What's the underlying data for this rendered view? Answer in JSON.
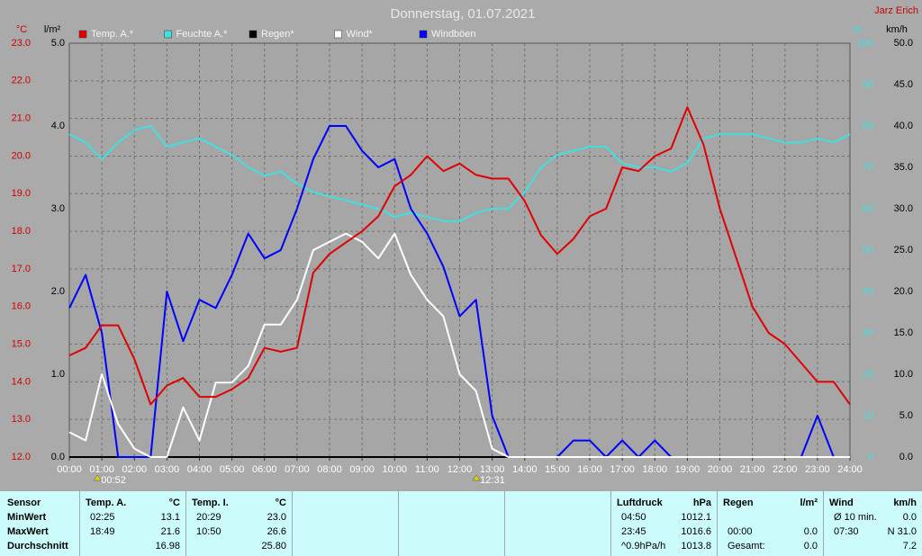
{
  "chart_data": {
    "type": "line",
    "title": "Donnerstag, 01.07.2021",
    "author": "Jarz Erich",
    "ylabel": "°C",
    "ylim": [
      12,
      23
    ],
    "yticks": [
      {
        "value": 12,
        "label": "12.0"
      },
      {
        "value": 13,
        "label": "13.0"
      },
      {
        "value": 14,
        "label": "14.0"
      },
      {
        "value": 15,
        "label": "15.0"
      },
      {
        "value": 16,
        "label": "16.0"
      },
      {
        "value": 17,
        "label": "17.0"
      },
      {
        "value": 18,
        "label": "18.0"
      },
      {
        "value": 19,
        "label": "19.0"
      },
      {
        "value": 20,
        "label": "20.0"
      },
      {
        "value": 21,
        "label": "21.0"
      },
      {
        "value": 22,
        "label": "22.0"
      },
      {
        "value": 23,
        "label": "23.0"
      }
    ],
    "y3label": "l/m²",
    "y3lim": [
      0,
      5
    ],
    "y3ticks": [
      {
        "value": 0,
        "label": "0.0"
      },
      {
        "value": 1,
        "label": "1.0"
      },
      {
        "value": 2,
        "label": "2.0"
      },
      {
        "value": 3,
        "label": "3.0"
      },
      {
        "value": 4,
        "label": "4.0"
      },
      {
        "value": 5,
        "label": "5.0"
      }
    ],
    "y2label": "%",
    "y2lim": [
      0,
      100
    ],
    "y2ticks": [
      0,
      10,
      20,
      30,
      40,
      50,
      60,
      70,
      80,
      90,
      100
    ],
    "y4label": "km/h",
    "y4lim": [
      0,
      50
    ],
    "y4ticks": [
      {
        "value": 0,
        "label": "0.0"
      },
      {
        "value": 5,
        "label": "5.0"
      },
      {
        "value": 10,
        "label": "10.0"
      },
      {
        "value": 15,
        "label": "15.0"
      },
      {
        "value": 20,
        "label": "20.0"
      },
      {
        "value": 25,
        "label": "25.0"
      },
      {
        "value": 30,
        "label": "30.0"
      },
      {
        "value": 35,
        "label": "35.0"
      },
      {
        "value": 40,
        "label": "40.0"
      },
      {
        "value": 45,
        "label": "45.0"
      },
      {
        "value": 50,
        "label": "50.0"
      }
    ],
    "xlim": [
      0,
      24
    ],
    "xticks": [
      {
        "value": 0,
        "label": "00:00"
      },
      {
        "value": 1,
        "label": "01:00"
      },
      {
        "value": 2,
        "label": "02:00"
      },
      {
        "value": 3,
        "label": "03:00"
      },
      {
        "value": 4,
        "label": "04:00"
      },
      {
        "value": 5,
        "label": "05:00"
      },
      {
        "value": 6,
        "label": "06:00"
      },
      {
        "value": 7,
        "label": "07:00"
      },
      {
        "value": 8,
        "label": "08:00"
      },
      {
        "value": 9,
        "label": "09:00"
      },
      {
        "value": 10,
        "label": "10:00"
      },
      {
        "value": 11,
        "label": "11:00"
      },
      {
        "value": 12,
        "label": "12:00"
      },
      {
        "value": 13,
        "label": "13:00"
      },
      {
        "value": 14,
        "label": "14:00"
      },
      {
        "value": 15,
        "label": "15:00"
      },
      {
        "value": 16,
        "label": "16:00"
      },
      {
        "value": 17,
        "label": "17:00"
      },
      {
        "value": 18,
        "label": "18:00"
      },
      {
        "value": 19,
        "label": "19:00"
      },
      {
        "value": 20,
        "label": "20:00"
      },
      {
        "value": 21,
        "label": "21:00"
      },
      {
        "value": 22,
        "label": "22:00"
      },
      {
        "value": 23,
        "label": "23:00"
      },
      {
        "value": 24,
        "label": "24:00"
      }
    ],
    "grid": true,
    "annotations": [
      {
        "text": "00:52",
        "x": 0.8667
      },
      {
        "text": "12:31",
        "x": 12.5167
      }
    ],
    "x": [
      0,
      0.5,
      1,
      1.5,
      2,
      2.5,
      3,
      3.5,
      4,
      4.5,
      5,
      5.5,
      6,
      6.5,
      7,
      7.5,
      8,
      8.5,
      9,
      9.5,
      10,
      10.5,
      11,
      11.5,
      12,
      12.5,
      13,
      13.5,
      14,
      14.5,
      15,
      15.5,
      16,
      16.5,
      17,
      17.5,
      18,
      18.5,
      19,
      19.5,
      20,
      20.5,
      21,
      21.5,
      22,
      22.5,
      23,
      23.5,
      24
    ],
    "series": [
      {
        "name": "Temp. A.*",
        "color": "#e00000",
        "axis": "y",
        "values": [
          14.7,
          14.9,
          15.5,
          15.5,
          14.6,
          13.4,
          13.9,
          14.1,
          13.6,
          13.6,
          13.8,
          14.1,
          14.9,
          14.8,
          14.9,
          16.9,
          17.4,
          17.7,
          18.0,
          18.4,
          19.2,
          19.5,
          20.0,
          19.6,
          19.8,
          19.5,
          19.4,
          19.4,
          18.8,
          17.9,
          17.4,
          17.8,
          18.4,
          18.6,
          19.7,
          19.6,
          20.0,
          20.2,
          21.3,
          20.3,
          18.6,
          17.3,
          16.0,
          15.3,
          15.0,
          14.5,
          14.0,
          14.0,
          13.4
        ]
      },
      {
        "name": "Feuchte A.*",
        "color": "#40e0e0",
        "axis": "y2",
        "values": [
          78,
          76,
          72,
          76,
          79,
          80,
          75,
          76,
          77,
          75,
          73,
          70,
          68,
          69,
          66,
          64,
          63,
          62,
          61,
          60,
          58,
          59,
          58,
          57,
          57,
          59,
          60,
          60,
          64,
          70,
          73,
          74,
          75,
          75,
          71,
          70,
          70,
          69,
          71,
          77,
          78,
          78,
          78,
          77,
          76,
          76,
          77,
          76,
          78
        ]
      },
      {
        "name": "Regen*",
        "color": "#000000",
        "axis": "y3",
        "values": [
          0,
          0,
          0,
          0,
          0,
          0,
          0,
          0,
          0,
          0,
          0,
          0,
          0,
          0,
          0,
          0,
          0,
          0,
          0,
          0,
          0,
          0,
          0,
          0,
          0,
          0,
          0,
          0,
          0,
          0,
          0,
          0,
          0,
          0,
          0,
          0,
          0,
          0,
          0,
          0,
          0,
          0,
          0,
          0,
          0,
          0,
          0,
          0,
          0
        ]
      },
      {
        "name": "Wind*",
        "color": "#ffffff",
        "axis": "y4",
        "values": [
          3,
          2,
          10,
          4,
          1,
          0,
          0,
          6,
          2,
          9,
          9,
          11,
          16,
          16,
          19,
          25,
          26,
          27,
          26,
          24,
          27,
          22,
          19,
          17,
          10,
          8,
          1,
          0,
          0,
          0,
          0,
          0,
          0,
          0,
          0,
          0,
          0,
          0,
          0,
          0,
          0,
          0,
          0,
          0,
          0,
          0,
          0,
          0,
          0
        ]
      },
      {
        "name": "Windböen",
        "color": "#0000ff",
        "axis": "y4",
        "values": [
          18,
          22,
          15,
          0,
          0,
          0,
          20,
          14,
          19,
          18,
          22,
          27,
          24,
          25,
          30,
          36,
          40,
          40,
          37,
          35,
          36,
          30,
          27,
          23,
          17,
          19,
          5,
          0,
          0,
          0,
          0,
          2,
          2,
          0,
          2,
          0,
          2,
          0,
          0,
          0,
          0,
          0,
          0,
          0,
          0,
          0,
          5,
          0,
          0
        ]
      }
    ]
  },
  "stats": {
    "sensor": {
      "header": "Sensor",
      "rows": [
        "MinWert",
        "MaxWert",
        "Durchschnitt"
      ]
    },
    "groups": [
      {
        "header": "Temp. A.",
        "unit": "°C",
        "min": {
          "time": "02:25",
          "value": "13.1"
        },
        "max": {
          "time": "18:49",
          "value": "21.6"
        },
        "avg": {
          "value": "16.98"
        }
      },
      {
        "header": "Temp. I.",
        "unit": "°C",
        "min": {
          "time": "20:29",
          "value": "23.0"
        },
        "max": {
          "time": "10:50",
          "value": "26.6"
        },
        "avg": {
          "value": "25.80"
        }
      },
      {
        "header": "Luftdruck",
        "unit": "hPa",
        "min": {
          "time": "04:50",
          "value": "1012.1"
        },
        "max": {
          "time": "23:45",
          "value": "1016.6"
        },
        "avg": {
          "time": "^0.9hPa/h",
          "value": "1013.8"
        }
      },
      {
        "header": "Regen",
        "unit": "l/m²",
        "max": {
          "time": "00:00",
          "value": "0.0"
        },
        "avg": {
          "time": "Gesamt:",
          "value": "0.0"
        }
      },
      {
        "header": "Wind",
        "unit": "km/h",
        "min": {
          "time": "Ø 10 min.",
          "value": "0.0"
        },
        "max": {
          "time": "07:30",
          "value": "N 31.0"
        },
        "avg": {
          "value": "7.2"
        }
      }
    ]
  }
}
